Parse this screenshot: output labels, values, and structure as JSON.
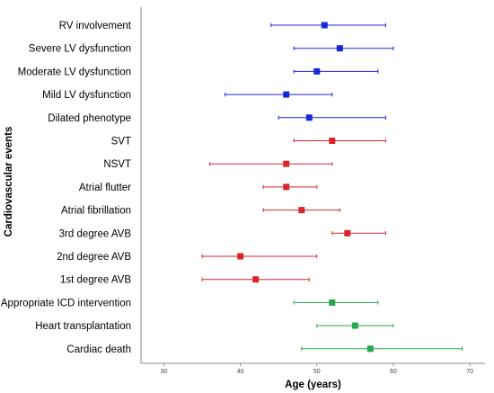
{
  "chart_data": {
    "type": "forest",
    "xlabel": "Age (years)",
    "ylabel": "Cardiovascular  events",
    "xlim": [
      27,
      72
    ],
    "xticks": [
      30,
      40,
      50,
      60,
      70
    ],
    "grid": false,
    "legend": "none",
    "colors": {
      "blue": "#1a27d6",
      "red": "#d9242b",
      "green": "#26a84a",
      "axis": "#8c8c8c"
    },
    "rows": [
      {
        "label": "RV involvement",
        "mean": 51,
        "low": 44,
        "high": 59,
        "color": "blue"
      },
      {
        "label": "Severe LV dysfunction",
        "mean": 53,
        "low": 47,
        "high": 60,
        "color": "blue"
      },
      {
        "label": "Moderate LV dysfunction",
        "mean": 50,
        "low": 47,
        "high": 58,
        "color": "blue"
      },
      {
        "label": "Mild LV dysfunction",
        "mean": 46,
        "low": 38,
        "high": 52,
        "color": "blue"
      },
      {
        "label": "Dilated phenotype",
        "mean": 49,
        "low": 45,
        "high": 59,
        "color": "blue"
      },
      {
        "label": "SVT",
        "mean": 52,
        "low": 47,
        "high": 59,
        "color": "red"
      },
      {
        "label": "NSVT",
        "mean": 46,
        "low": 36,
        "high": 52,
        "color": "red"
      },
      {
        "label": "Atrial flutter",
        "mean": 46,
        "low": 43,
        "high": 50,
        "color": "red"
      },
      {
        "label": "Atrial fibrillation",
        "mean": 48,
        "low": 43,
        "high": 53,
        "color": "red"
      },
      {
        "label": "3rd degree AVB",
        "mean": 54,
        "low": 52,
        "high": 59,
        "color": "red"
      },
      {
        "label": "2nd degree AVB",
        "mean": 40,
        "low": 35,
        "high": 50,
        "color": "red"
      },
      {
        "label": "1st degree AVB",
        "mean": 42,
        "low": 35,
        "high": 49,
        "color": "red"
      },
      {
        "label": "Appropriate ICD intervention",
        "mean": 52,
        "low": 47,
        "high": 58,
        "color": "green"
      },
      {
        "label": "Heart transplantation",
        "mean": 55,
        "low": 50,
        "high": 60,
        "color": "green"
      },
      {
        "label": "Cardiac death",
        "mean": 57,
        "low": 48,
        "high": 69,
        "color": "green"
      }
    ]
  }
}
